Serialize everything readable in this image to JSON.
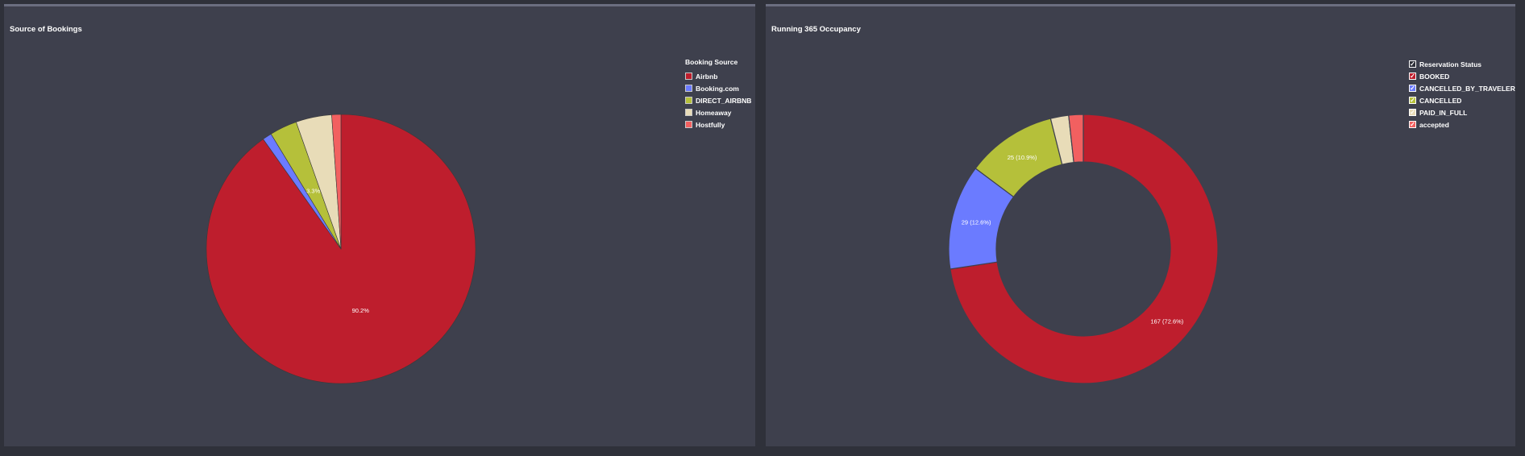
{
  "colors": {
    "background": "#2f313a",
    "panel": "#3e404d",
    "panel_border": "#6b6e80"
  },
  "chart_data": [
    {
      "type": "pie",
      "title": "Source of Bookings",
      "legend_title": "Booking Source",
      "legend_position": "top-right",
      "start_angle_deg": 0,
      "slices": [
        {
          "name": "Airbnb",
          "value": 90.2,
          "color": "#be1e2d"
        },
        {
          "name": "Booking.com",
          "value": 1.1,
          "color": "#6b7bff"
        },
        {
          "name": "DIRECT_AIRBNB",
          "value": 3.3,
          "color": "#b5c03a"
        },
        {
          "name": "Homeaway",
          "value": 4.3,
          "color": "#e8dcb8"
        },
        {
          "name": "Hostfully",
          "value": 1.1,
          "color": "#f26060"
        }
      ],
      "data_labels": [
        {
          "slice": 0,
          "text": "90.2%"
        },
        {
          "slice": 2,
          "text": "3.3%"
        }
      ]
    },
    {
      "type": "pie",
      "donut": true,
      "title": "Running 365 Occupancy",
      "legend_title": "Reservation Status",
      "legend_position": "top-right",
      "start_angle_deg": 0,
      "slices": [
        {
          "name": "BOOKED",
          "value": 167,
          "color": "#be1e2d"
        },
        {
          "name": "CANCELLED_BY_TRAVELER",
          "value": 29,
          "color": "#6b7bff"
        },
        {
          "name": "CANCELLED",
          "value": 25,
          "color": "#b5c03a"
        },
        {
          "name": "PAID_IN_FULL",
          "value": 5,
          "color": "#e8dcb8"
        },
        {
          "name": "accepted",
          "value": 4,
          "color": "#f26060"
        }
      ],
      "data_labels": [
        {
          "slice": 0,
          "text": "167 (72.6%)"
        },
        {
          "slice": 1,
          "text": "29 (12.6%)"
        },
        {
          "slice": 2,
          "text": "25 (10.9%)"
        }
      ]
    }
  ]
}
